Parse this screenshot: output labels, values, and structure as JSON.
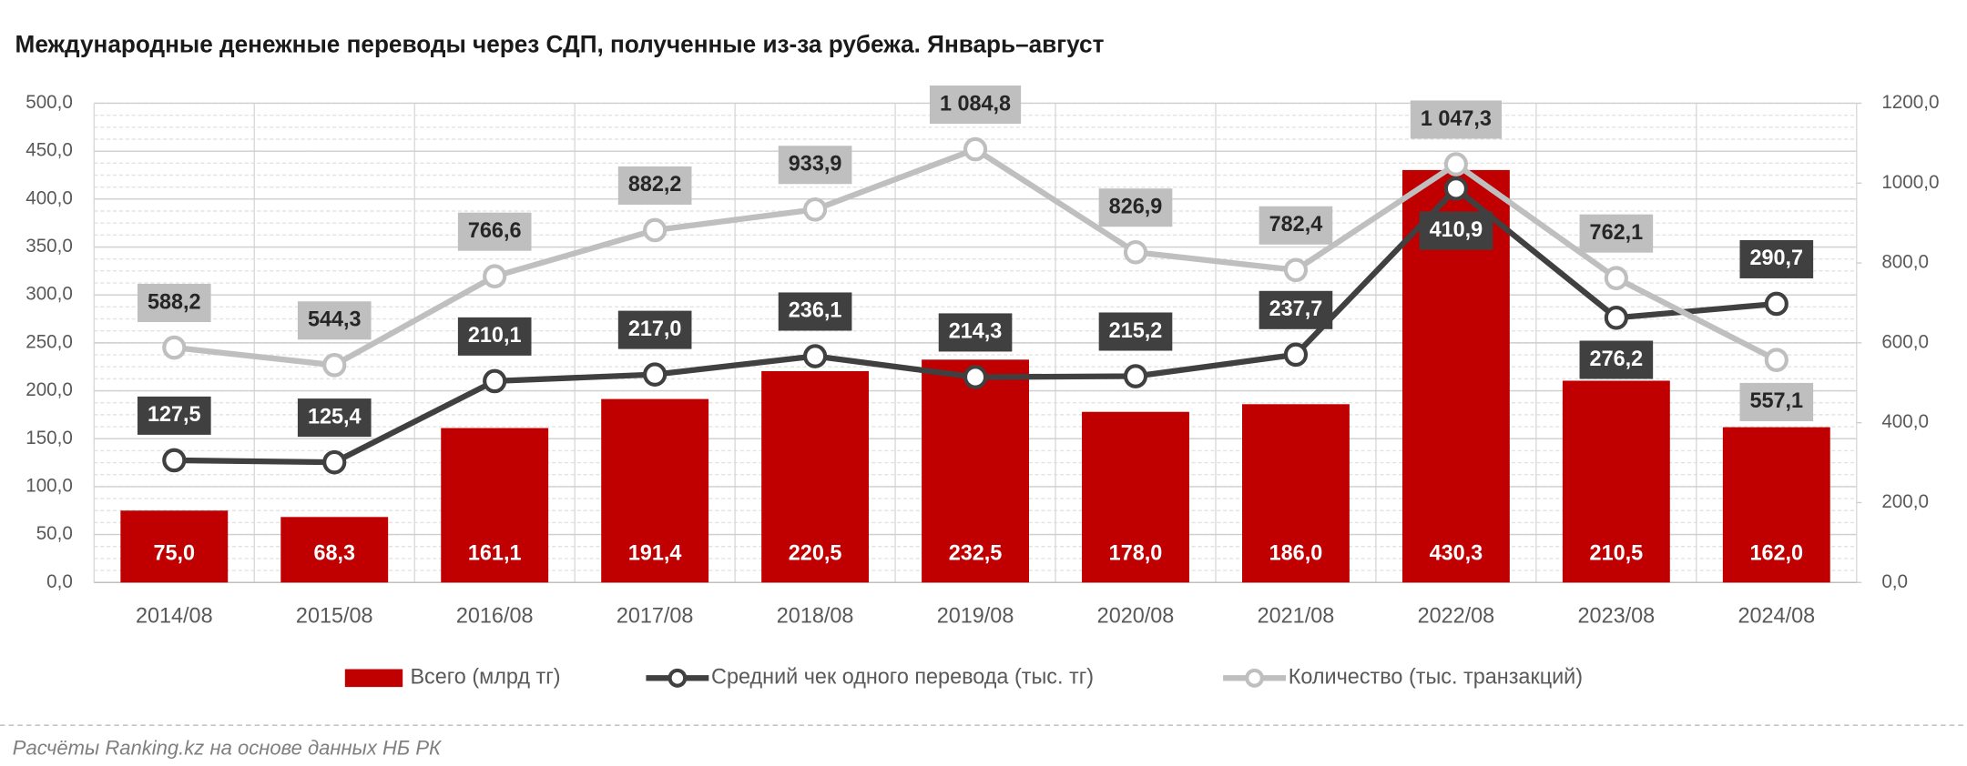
{
  "chart_data": {
    "type": "bar",
    "title": "Международные денежные переводы через СДП, полученные из-за рубежа. Январь–август",
    "source": "Расчёты Ranking.kz на основе данных НБ РК",
    "categories": [
      "2014/08",
      "2015/08",
      "2016/08",
      "2017/08",
      "2018/08",
      "2019/08",
      "2020/08",
      "2021/08",
      "2022/08",
      "2023/08",
      "2024/08"
    ],
    "series": [
      {
        "name": "Всего (млрд тг)",
        "type": "bar",
        "color": "#c00000",
        "values": [
          75.0,
          68.3,
          161.1,
          191.4,
          220.5,
          232.5,
          178.0,
          186.0,
          430.3,
          210.5,
          162.0
        ],
        "value_labels": [
          "75,0",
          "68,3",
          "161,1",
          "191,4",
          "220,5",
          "232,5",
          "178,0",
          "186,0",
          "430,3",
          "210,5",
          "162,0"
        ]
      },
      {
        "name": "Средний чек одного перевода (тыс. тг)",
        "type": "line",
        "color": "#404040",
        "values": [
          127.5,
          125.4,
          210.1,
          217.0,
          236.1,
          214.3,
          215.2,
          237.7,
          410.9,
          276.2,
          290.7
        ],
        "value_labels": [
          "127,5",
          "125,4",
          "210,1",
          "217,0",
          "236,1",
          "214,3",
          "215,2",
          "237,7",
          "410,9",
          "276,2",
          "290,7"
        ]
      },
      {
        "name": "Количество (тыс. транзакций)",
        "type": "line",
        "color": "#bfbfbf",
        "axis": "y2",
        "values": [
          588.2,
          544.3,
          766.6,
          882.2,
          933.9,
          1084.8,
          826.9,
          782.4,
          1047.3,
          762.1,
          557.1
        ],
        "value_labels": [
          "588,2",
          "544,3",
          "766,6",
          "882,2",
          "933,9",
          "1 084,8",
          "826,9",
          "782,4",
          "1 047,3",
          "762,1",
          "557,1"
        ]
      }
    ],
    "ylim": [
      0,
      500
    ],
    "yticks": [
      {
        "value": 0,
        "label": "0,0"
      },
      {
        "value": 50,
        "label": "50,0"
      },
      {
        "value": 100,
        "label": "100,0"
      },
      {
        "value": 150,
        "label": "150,0"
      },
      {
        "value": 200,
        "label": "200,0"
      },
      {
        "value": 250,
        "label": "250,0"
      },
      {
        "value": 300,
        "label": "300,0"
      },
      {
        "value": 350,
        "label": "350,0"
      },
      {
        "value": 400,
        "label": "400,0"
      },
      {
        "value": 450,
        "label": "450,0"
      },
      {
        "value": 500,
        "label": "500,0"
      }
    ],
    "y2lim": [
      0,
      1200
    ],
    "y2ticks": [
      {
        "value": 0,
        "label": "0,0"
      },
      {
        "value": 200,
        "label": "200,0"
      },
      {
        "value": 400,
        "label": "400,0"
      },
      {
        "value": 600,
        "label": "600,0"
      },
      {
        "value": 800,
        "label": "800,0"
      },
      {
        "value": 1000,
        "label": "1000,0"
      },
      {
        "value": 1200,
        "label": "1200,0"
      }
    ],
    "grid": true
  }
}
